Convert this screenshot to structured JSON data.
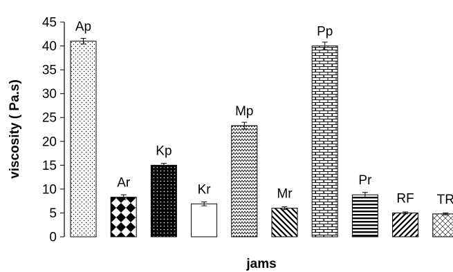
{
  "chart_data": {
    "type": "bar",
    "title": "",
    "xlabel": "jams",
    "ylabel": "viscosity ( Pa.s)",
    "ylim": [
      0,
      45
    ],
    "yticks": [
      0,
      5,
      10,
      15,
      20,
      25,
      30,
      35,
      40,
      45
    ],
    "categories": [
      "Ap",
      "Ar",
      "Kp",
      "Kr",
      "Mp",
      "Mr",
      "Pp",
      "Pr",
      "RF",
      "TR"
    ],
    "values": [
      41,
      8.3,
      15,
      6.9,
      23.3,
      6,
      40,
      8.8,
      5,
      4.8
    ],
    "errors": [
      0.6,
      0.5,
      0.4,
      0.4,
      0.7,
      0.3,
      0.8,
      0.5,
      0.2,
      0.2
    ],
    "patterns": [
      "dots-sparse",
      "diamonds",
      "dots-dense",
      "solid-white",
      "zigzag",
      "diag-down",
      "bricks",
      "horizontal",
      "diag-up",
      "diamond-grid"
    ],
    "grid": false,
    "legend": "none"
  }
}
